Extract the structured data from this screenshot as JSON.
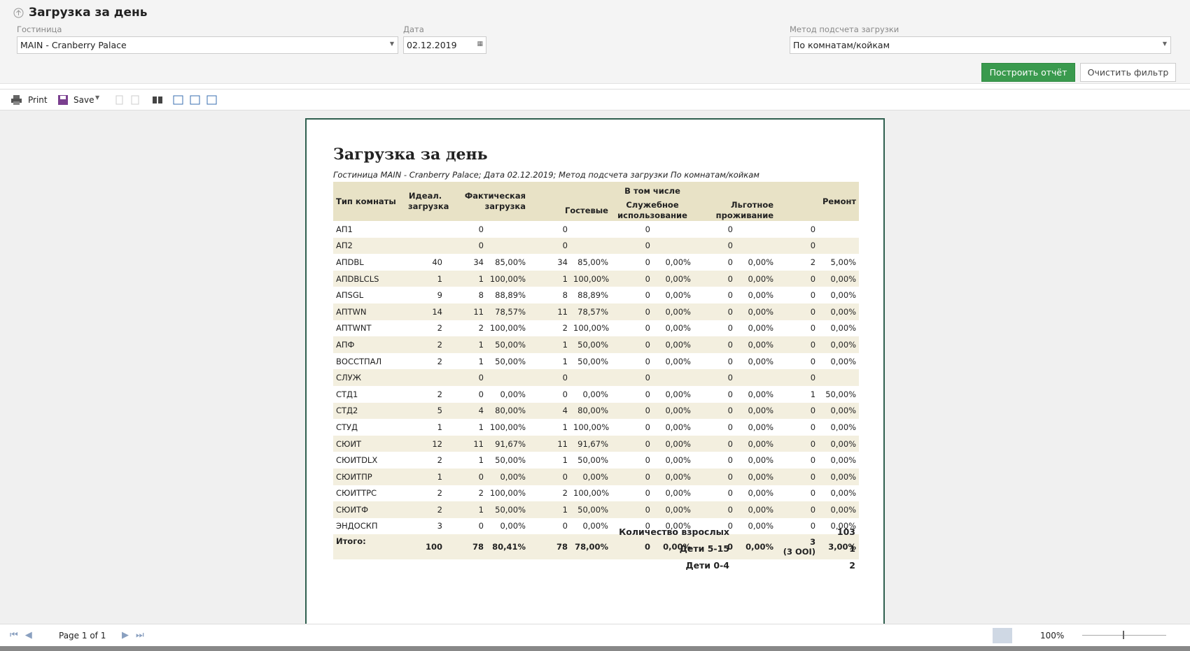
{
  "header": {
    "title": "Загрузка за день"
  },
  "filters": [
    {
      "label": "Гостиница",
      "value": "MAIN - Cranberry Palace"
    },
    {
      "label": "Дата",
      "value": "02.12.2019"
    },
    {
      "label": "Метод подсчета загрузки",
      "value": "По комнатам/койкам"
    }
  ],
  "buttons": [
    "Построить отчёт",
    "Очистить фильтр"
  ],
  "toolbar": [
    "Print",
    "Save"
  ],
  "report": {
    "title": "Загрузка за день",
    "subtitle": "Гостиница MAIN - Cranberry Palace; Дата 02.12.2019; Метод подсчета загрузки По комнатам/койкам",
    "headers": {
      "type": "Тип комнаты",
      "ideal": "Идеал. загрузка",
      "fact": "Фактическая загрузка",
      "including": "В том числе",
      "guest": "Гостевые",
      "service": "Служебное использование",
      "benefit": "Льготное проживание",
      "repair": "Ремонт"
    },
    "rows": [
      [
        "АП1",
        null,
        "0",
        null,
        "0",
        null,
        "0",
        null,
        "0",
        null,
        "0",
        null
      ],
      [
        "АП2",
        null,
        "0",
        null,
        "0",
        null,
        "0",
        null,
        "0",
        null,
        "0",
        null
      ],
      [
        "АПDBL",
        "40",
        "34",
        "85,00%",
        "34",
        "85,00%",
        "0",
        "0,00%",
        "0",
        "0,00%",
        "2",
        "5,00%"
      ],
      [
        "АПDBLCLS",
        "1",
        "1",
        "100,00%",
        "1",
        "100,00%",
        "0",
        "0,00%",
        "0",
        "0,00%",
        "0",
        "0,00%"
      ],
      [
        "АПSGL",
        "9",
        "8",
        "88,89%",
        "8",
        "88,89%",
        "0",
        "0,00%",
        "0",
        "0,00%",
        "0",
        "0,00%"
      ],
      [
        "АПTWN",
        "14",
        "11",
        "78,57%",
        "11",
        "78,57%",
        "0",
        "0,00%",
        "0",
        "0,00%",
        "0",
        "0,00%"
      ],
      [
        "АПTWNT",
        "2",
        "2",
        "100,00%",
        "2",
        "100,00%",
        "0",
        "0,00%",
        "0",
        "0,00%",
        "0",
        "0,00%"
      ],
      [
        "АПФ",
        "2",
        "1",
        "50,00%",
        "1",
        "50,00%",
        "0",
        "0,00%",
        "0",
        "0,00%",
        "0",
        "0,00%"
      ],
      [
        "ВОССТПАЛ",
        "2",
        "1",
        "50,00%",
        "1",
        "50,00%",
        "0",
        "0,00%",
        "0",
        "0,00%",
        "0",
        "0,00%"
      ],
      [
        "СЛУЖ",
        null,
        "0",
        null,
        "0",
        null,
        "0",
        null,
        "0",
        null,
        "0",
        null
      ],
      [
        "СТД1",
        "2",
        "0",
        "0,00%",
        "0",
        "0,00%",
        "0",
        "0,00%",
        "0",
        "0,00%",
        "1",
        "50,00%"
      ],
      [
        "СТД2",
        "5",
        "4",
        "80,00%",
        "4",
        "80,00%",
        "0",
        "0,00%",
        "0",
        "0,00%",
        "0",
        "0,00%"
      ],
      [
        "СТУД",
        "1",
        "1",
        "100,00%",
        "1",
        "100,00%",
        "0",
        "0,00%",
        "0",
        "0,00%",
        "0",
        "0,00%"
      ],
      [
        "СЮИТ",
        "12",
        "11",
        "91,67%",
        "11",
        "91,67%",
        "0",
        "0,00%",
        "0",
        "0,00%",
        "0",
        "0,00%"
      ],
      [
        "СЮИТDLX",
        "2",
        "1",
        "50,00%",
        "1",
        "50,00%",
        "0",
        "0,00%",
        "0",
        "0,00%",
        "0",
        "0,00%"
      ],
      [
        "СЮИТПР",
        "1",
        "0",
        "0,00%",
        "0",
        "0,00%",
        "0",
        "0,00%",
        "0",
        "0,00%",
        "0",
        "0,00%"
      ],
      [
        "СЮИТТРС",
        "2",
        "2",
        "100,00%",
        "2",
        "100,00%",
        "0",
        "0,00%",
        "0",
        "0,00%",
        "0",
        "0,00%"
      ],
      [
        "СЮИТФ",
        "2",
        "1",
        "50,00%",
        "1",
        "50,00%",
        "0",
        "0,00%",
        "0",
        "0,00%",
        "0",
        "0,00%"
      ],
      [
        "ЭНДОСКП",
        "3",
        "0",
        "0,00%",
        "0",
        "0,00%",
        "0",
        "0,00%",
        "0",
        "0,00%",
        "0",
        "0,00%"
      ]
    ],
    "total": [
      "Итого:",
      "100",
      "78",
      "80,41%",
      "78",
      "78,00%",
      "0",
      "0,00%",
      "0",
      "0,00%",
      "3",
      "3,00%"
    ],
    "total_note": "(3 OOI)",
    "summary": [
      [
        "Количество взрослых",
        "103"
      ],
      [
        "Дети 5-15",
        "1"
      ],
      [
        "Дети 0-4",
        "2"
      ]
    ]
  },
  "pager": {
    "label": "Page 1 of 1",
    "zoom": "100%"
  }
}
